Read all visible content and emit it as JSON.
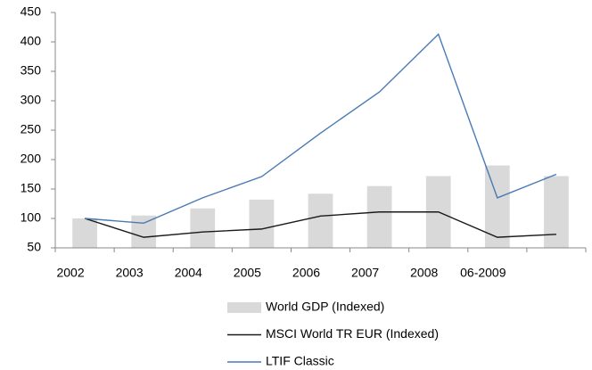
{
  "chart_data": {
    "type": "bar_line",
    "categories": [
      "2002",
      "2003",
      "2004",
      "2005",
      "2006",
      "2007",
      "2008",
      "06-2009",
      null
    ],
    "series": [
      {
        "name": "World GDP (Indexed)",
        "type": "bar",
        "color": "#d9d9d9",
        "values": [
          100,
          105,
          117,
          132,
          142,
          155,
          172,
          190,
          172
        ]
      },
      {
        "name": "MSCI World TR EUR  (Indexed)",
        "type": "line",
        "color": "#1a1a1a",
        "values": [
          100,
          68,
          77,
          82,
          104,
          111,
          111,
          68,
          73
        ]
      },
      {
        "name": "LTIF Classic",
        "type": "line",
        "color": "#4a7ab5",
        "values": [
          100,
          92,
          135,
          171,
          245,
          315,
          413,
          135,
          175
        ]
      }
    ],
    "ylim": [
      50,
      450
    ],
    "yticks": [
      50,
      100,
      150,
      200,
      250,
      300,
      350,
      400,
      450
    ],
    "grid": false,
    "legend": "bottom"
  }
}
